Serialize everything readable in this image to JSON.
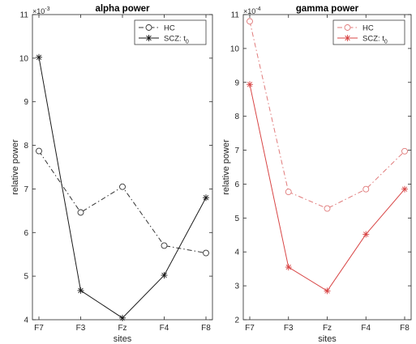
{
  "chart_data": [
    {
      "type": "line",
      "title": "alpha power",
      "xlabel": "sites",
      "ylabel": "relative power",
      "categories": [
        "F7",
        "F3",
        "Fz",
        "F4",
        "F8"
      ],
      "y_ticks": [
        "4",
        "5",
        "6",
        "7",
        "8",
        "9",
        "10",
        "11"
      ],
      "ylim": [
        4,
        11
      ],
      "scale_exponent": {
        "base": "×10",
        "exp": "-3"
      },
      "legend_position": "top-right",
      "series": [
        {
          "name": "HC",
          "values": [
            7.87,
            6.46,
            7.05,
            5.7,
            5.53
          ],
          "color": "#333333",
          "dash": "dashdot",
          "marker": "circle"
        },
        {
          "name": "SCZ: t",
          "name_sub": "0",
          "values": [
            10.02,
            4.67,
            4.04,
            5.02,
            6.8
          ],
          "color": "#1a1a1a",
          "dash": "solid",
          "marker": "star"
        }
      ]
    },
    {
      "type": "line",
      "title": "gamma power",
      "xlabel": "sites",
      "ylabel": "relative power",
      "categories": [
        "F7",
        "F3",
        "Fz",
        "F4",
        "F8"
      ],
      "y_ticks": [
        "2",
        "3",
        "4",
        "5",
        "6",
        "7",
        "8",
        "9",
        "10",
        "11"
      ],
      "ylim": [
        2,
        11
      ],
      "scale_exponent": {
        "base": "×10",
        "exp": "-4"
      },
      "legend_position": "top-right",
      "series": [
        {
          "name": "HC",
          "values": [
            10.8,
            5.77,
            5.28,
            5.85,
            6.97
          ],
          "color": "#e07a7a",
          "dash": "dashdot",
          "marker": "circle"
        },
        {
          "name": "SCZ: t",
          "name_sub": "0",
          "values": [
            8.94,
            3.55,
            2.85,
            4.52,
            5.85
          ],
          "color": "#d84545",
          "dash": "solid",
          "marker": "star"
        }
      ]
    }
  ]
}
